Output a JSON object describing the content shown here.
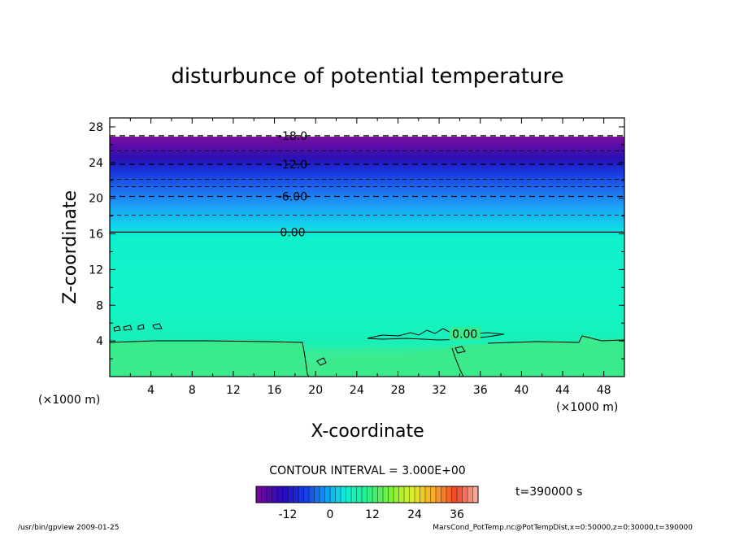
{
  "chart_data": {
    "type": "contour",
    "title": "disturbunce of potential temperature",
    "xlabel": "X-coordinate",
    "ylabel": "Z-coordinate",
    "x_unit": "(×1000 m)",
    "y_unit": "(×1000 m)",
    "xlim": [
      0,
      50
    ],
    "ylim": [
      0,
      29
    ],
    "x_ticks": [
      4,
      8,
      12,
      16,
      20,
      24,
      28,
      32,
      36,
      40,
      44,
      48
    ],
    "y_ticks": [
      4,
      8,
      12,
      16,
      20,
      24,
      28
    ],
    "contour_interval_text": "CONTOUR INTERVAL = 3.000E+00",
    "time_text": "t=390000 s",
    "contour_labels": [
      {
        "text": "-18.0",
        "z": 27.0
      },
      {
        "text": "-12.0",
        "z": 23.8
      },
      {
        "text": "-6.00",
        "z": 20.2
      },
      {
        "text": "0.00",
        "z": 16.2
      },
      {
        "text": "0.00",
        "x": 34.5,
        "z": 4.8
      }
    ],
    "dashed_contour_levels_z": [
      27.0,
      25.3,
      23.8,
      22.1,
      21.3,
      20.2,
      18.1
    ],
    "zero_contour_level_z": 16.2,
    "colorbar": {
      "ticks": [
        "-12",
        "0",
        "12",
        "24",
        "36"
      ],
      "tick_values": [
        -12,
        0,
        12,
        24,
        36
      ],
      "range": [
        -21,
        42
      ]
    },
    "footer_left": "/usr/bin/gpview   2009-01-25",
    "footer_right": "MarsCond_PotTemp.nc@PotTempDist,x=0:50000,z=0:30000,t=390000"
  }
}
